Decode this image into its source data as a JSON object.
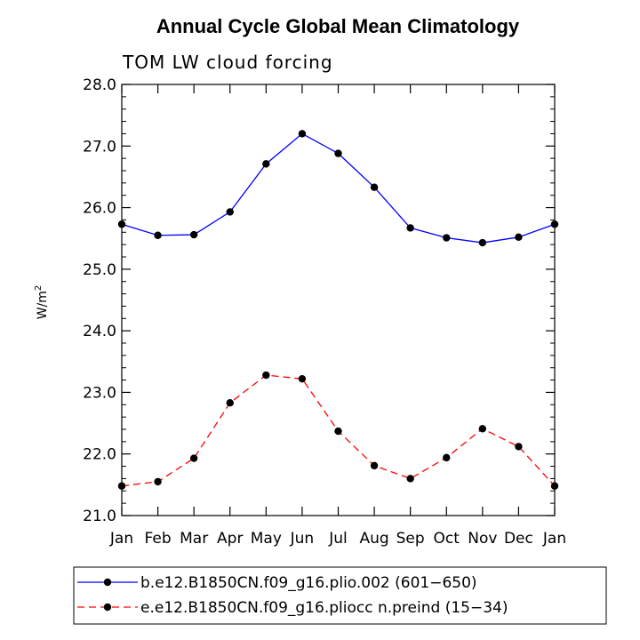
{
  "chart_data": {
    "type": "line",
    "title": "Annual Cycle Global Mean Climatology",
    "subtitle": "TOM LW cloud forcing",
    "ylabel": "W/m",
    "ylabel_superscript": "2",
    "ylim": [
      21.0,
      28.0
    ],
    "y_ticks": [
      "21.0",
      "22.0",
      "23.0",
      "24.0",
      "25.0",
      "26.0",
      "27.0",
      "28.0"
    ],
    "categories": [
      "Jan",
      "Feb",
      "Mar",
      "Apr",
      "May",
      "Jun",
      "Jul",
      "Aug",
      "Sep",
      "Oct",
      "Nov",
      "Dec",
      "Jan"
    ],
    "grid": false,
    "legend_position": "bottom",
    "series": [
      {
        "name": "b.e12.B1850CN.f09_g16.plio.002 (601−650)",
        "color": "#0000ff",
        "line_style": "solid",
        "marker": "filled-circle",
        "values": [
          25.73,
          25.55,
          25.56,
          25.93,
          26.71,
          27.2,
          26.88,
          26.33,
          25.67,
          25.51,
          25.43,
          25.52,
          25.73
        ]
      },
      {
        "name": "e.e12.B1850CN.f09_g16.pliocc n.preind (15−34)",
        "color": "#ff0000",
        "line_style": "dashed",
        "marker": "filled-circle",
        "values": [
          21.48,
          21.55,
          21.93,
          22.83,
          23.28,
          23.22,
          22.37,
          21.81,
          21.6,
          21.94,
          22.41,
          22.12,
          21.48
        ]
      }
    ]
  }
}
